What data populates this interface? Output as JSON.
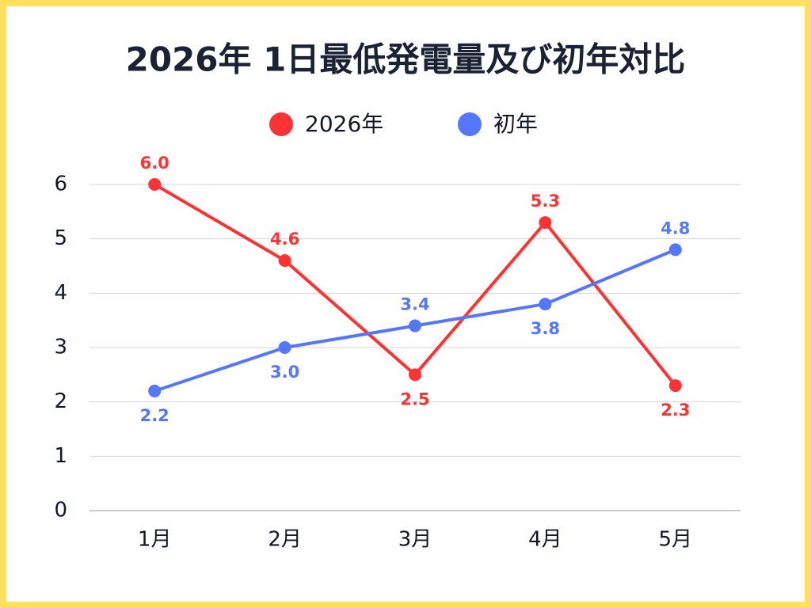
{
  "chart_data": {
    "type": "line",
    "title": "2026年 1日最低発電量及び初年対比",
    "categories": [
      "1月",
      "2月",
      "3月",
      "4月",
      "5月"
    ],
    "series": [
      {
        "name": "2026年",
        "color": "#ff3333",
        "values": [
          6,
          4.6,
          2.5,
          5.3,
          2.3
        ],
        "value_labels": [
          "6.0",
          "4.6",
          "2.5",
          "5.3",
          "2.3"
        ]
      },
      {
        "name": "初年",
        "color": "#5577ff",
        "values": [
          2.2,
          3,
          3.4,
          3.8,
          4.8
        ],
        "value_labels": [
          "2.2",
          "3.0",
          "3.4",
          "3.8",
          "4.8"
        ]
      }
    ],
    "ylim": [
      0,
      6
    ],
    "yticks": [
      0,
      1,
      2,
      3,
      4,
      5,
      6
    ],
    "grid": true,
    "legend": "top"
  }
}
